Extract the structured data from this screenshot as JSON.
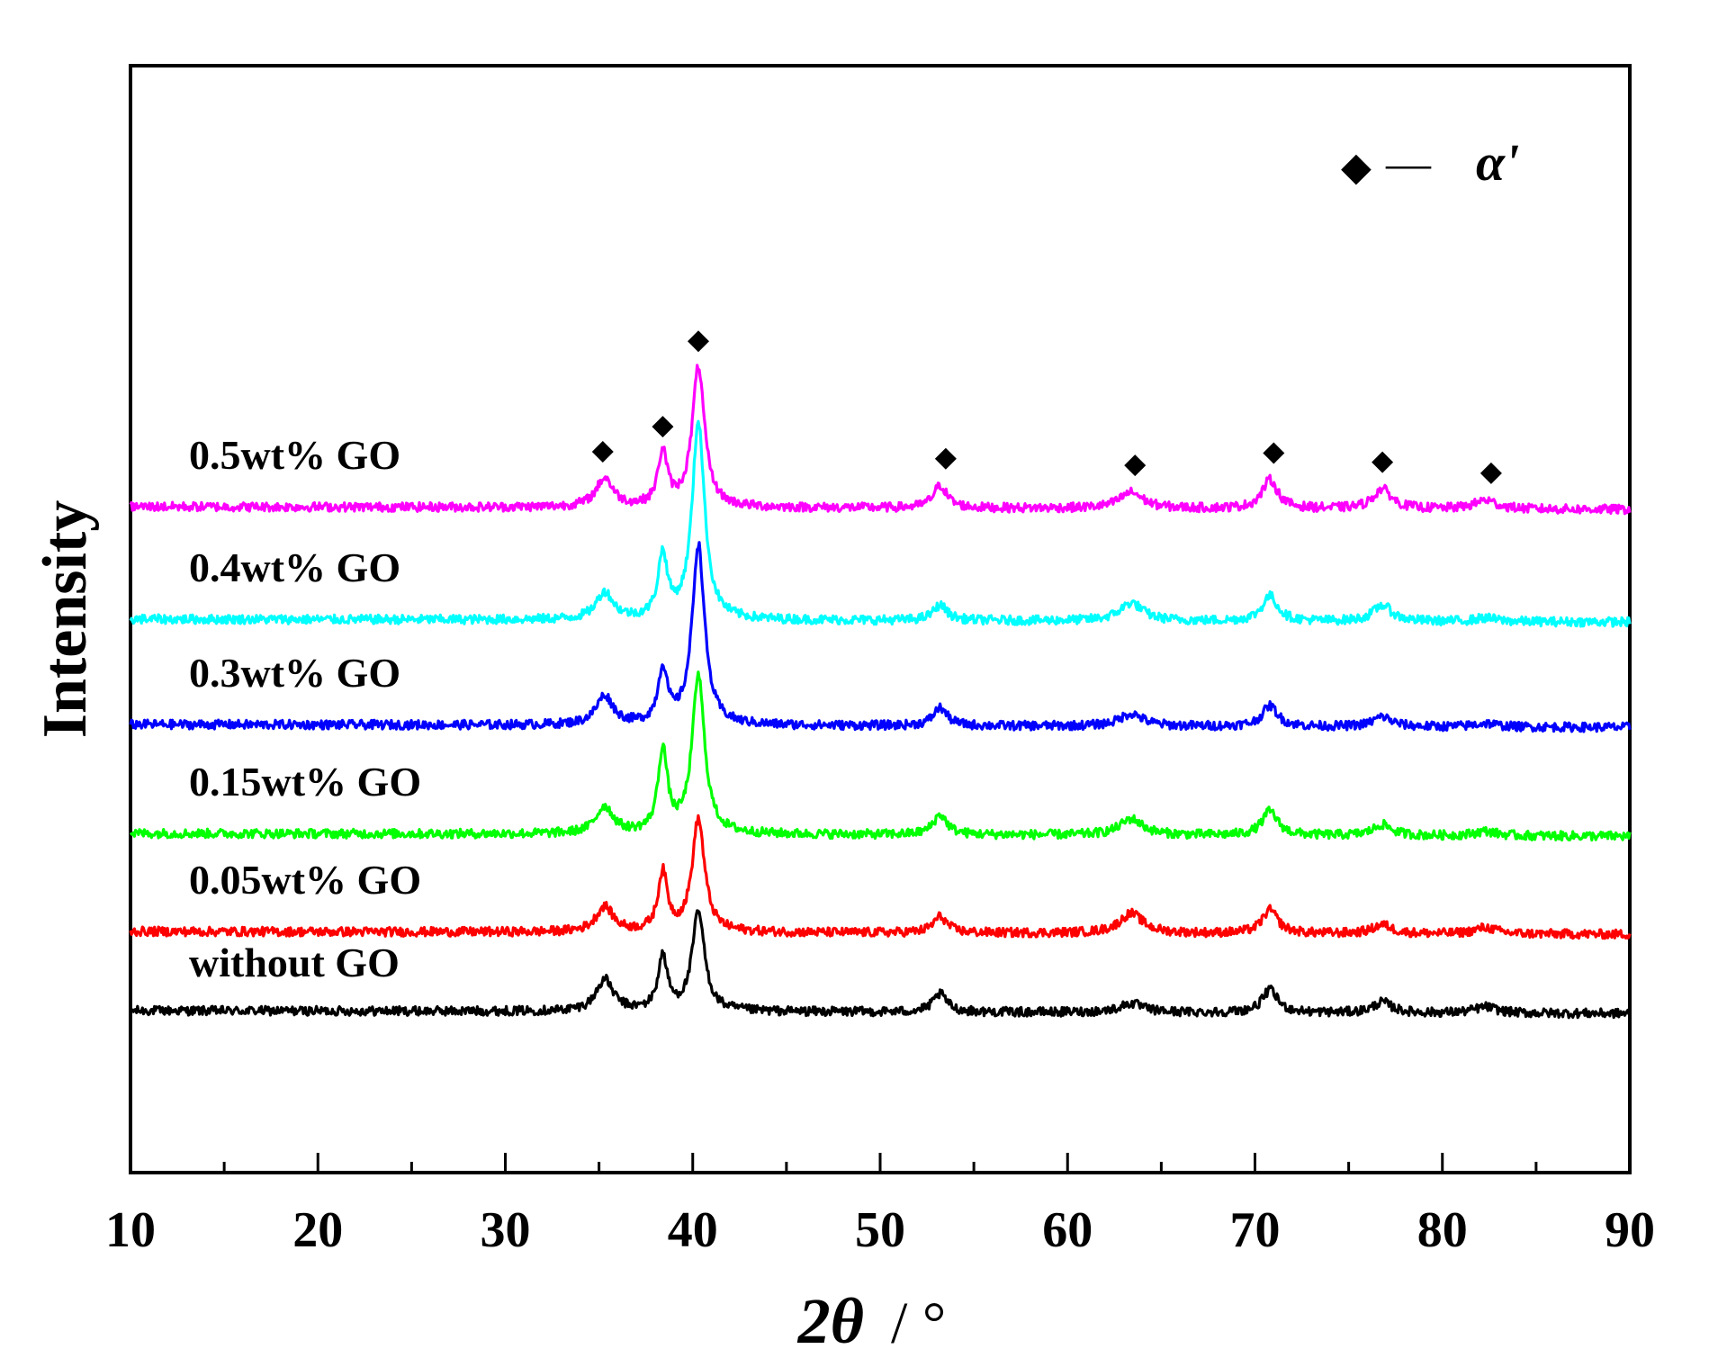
{
  "chart_data": {
    "type": "line",
    "title": "",
    "xlabel": {
      "main": "2θ",
      "unit": "/ °"
    },
    "ylabel": "Intensity",
    "xlim": [
      10,
      90
    ],
    "xticks": [
      10,
      20,
      30,
      40,
      50,
      60,
      70,
      80,
      90
    ],
    "yticks_shown": false,
    "legend": {
      "symbol": "◆",
      "dash": "—",
      "label": "α'",
      "placement": "top-right"
    },
    "phase_markers": [
      35.2,
      38.4,
      40.3,
      53.5,
      63.6,
      71.0,
      76.8,
      82.6
    ],
    "peaks": [
      {
        "pos": 35.3,
        "w": 0.55
      },
      {
        "pos": 38.4,
        "w": 0.3
      },
      {
        "pos": 40.3,
        "w": 0.4
      },
      {
        "pos": 53.2,
        "w": 0.45
      },
      {
        "pos": 63.4,
        "w": 0.75
      },
      {
        "pos": 70.8,
        "w": 0.5
      },
      {
        "pos": 76.8,
        "w": 0.6
      },
      {
        "pos": 82.3,
        "w": 0.7
      }
    ],
    "series": [
      {
        "name": "without GO",
        "color": "#000000",
        "baseline": 100,
        "heights": [
          35,
          60,
          110,
          20,
          10,
          25,
          12,
          7
        ]
      },
      {
        "name": "0.05wt% GO",
        "color": "#ff0000",
        "baseline": 188,
        "heights": [
          28,
          65,
          125,
          18,
          22,
          26,
          10,
          7
        ]
      },
      {
        "name": "0.15wt% GO",
        "color": "#00ff00",
        "baseline": 297,
        "heights": [
          30,
          92,
          175,
          22,
          18,
          27,
          12,
          5
        ]
      },
      {
        "name": "0.3wt% GO",
        "color": "#0000ff",
        "baseline": 418,
        "heights": [
          32,
          60,
          200,
          20,
          14,
          23,
          11,
          4
        ]
      },
      {
        "name": "0.4wt% GO",
        "color": "#00ffff",
        "baseline": 535,
        "heights": [
          30,
          70,
          220,
          17,
          20,
          28,
          18,
          4
        ]
      },
      {
        "name": "0.5wt% GO",
        "color": "#ff00ff",
        "baseline": 660,
        "heights": [
          32,
          60,
          155,
          25,
          18,
          32,
          22,
          10
        ]
      }
    ]
  }
}
